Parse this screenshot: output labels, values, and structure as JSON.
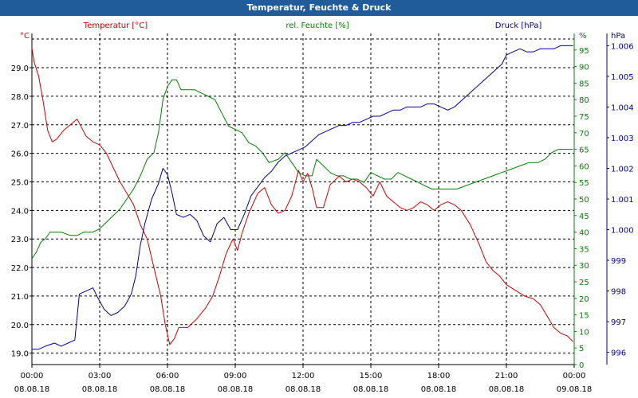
{
  "title": "Temperatur, Feuchte & Druck",
  "colors": {
    "temperature": "#cc0000",
    "humidity": "#008000",
    "pressure": "#000099",
    "title_bar": "#1f5c99",
    "grid": "#000000"
  },
  "chart_data": {
    "type": "line",
    "title": "Temperatur, Feuchte & Druck",
    "x_range": [
      0,
      24
    ],
    "x_ticks": [
      {
        "hours": 0,
        "time": "00:00",
        "date": "08.08.18"
      },
      {
        "hours": 3,
        "time": "03:00",
        "date": "08.08.18"
      },
      {
        "hours": 6,
        "time": "06:00",
        "date": "08.08.18"
      },
      {
        "hours": 9,
        "time": "09:00",
        "date": "08.08.18"
      },
      {
        "hours": 12,
        "time": "12:00",
        "date": "08.08.18"
      },
      {
        "hours": 15,
        "time": "15:00",
        "date": "08.08.18"
      },
      {
        "hours": 18,
        "time": "18:00",
        "date": "08.08.18"
      },
      {
        "hours": 21,
        "time": "21:00",
        "date": "08.08.18"
      },
      {
        "hours": 24,
        "time": "00:00",
        "date": "09.08.18"
      }
    ],
    "axes": {
      "temperature": {
        "label": "Temperatur [°C]",
        "unit": "°C",
        "range": [
          18.6,
          30.2
        ],
        "ticks": [
          "19.0",
          "20.0",
          "21.0",
          "22.0",
          "23.0",
          "24.0",
          "25.0",
          "26.0",
          "27.0",
          "28.0",
          "29.0"
        ]
      },
      "humidity": {
        "label": "rel. Feuchte [%]",
        "unit": "%",
        "range": [
          0,
          100
        ],
        "ticks": [
          "0",
          "5",
          "10",
          "15",
          "20",
          "25",
          "30",
          "35",
          "40",
          "45",
          "50",
          "55",
          "60",
          "65",
          "70",
          "75",
          "80",
          "85",
          "90",
          "95"
        ]
      },
      "pressure": {
        "label": "Druck [hPa]",
        "unit": "hPa",
        "range": [
          995.6,
          1006.4
        ],
        "ticks": [
          "996",
          "997",
          "998",
          "999",
          "1.000",
          "1.001",
          "1.002",
          "1.003",
          "1.004",
          "1.005",
          "1.006"
        ]
      }
    },
    "series": [
      {
        "name": "Temperatur",
        "axis": "temperature",
        "points": [
          [
            0,
            29.7
          ],
          [
            0.1,
            29.2
          ],
          [
            0.3,
            28.7
          ],
          [
            0.5,
            27.8
          ],
          [
            0.7,
            26.8
          ],
          [
            0.9,
            26.4
          ],
          [
            1.1,
            26.5
          ],
          [
            1.4,
            26.8
          ],
          [
            1.7,
            27.0
          ],
          [
            2.0,
            27.2
          ],
          [
            2.2,
            26.9
          ],
          [
            2.4,
            26.6
          ],
          [
            2.7,
            26.4
          ],
          [
            3.0,
            26.3
          ],
          [
            3.3,
            26.0
          ],
          [
            3.6,
            25.5
          ],
          [
            3.9,
            25.0
          ],
          [
            4.2,
            24.6
          ],
          [
            4.5,
            24.2
          ],
          [
            4.8,
            23.5
          ],
          [
            5.1,
            23.0
          ],
          [
            5.4,
            22.0
          ],
          [
            5.7,
            21.0
          ],
          [
            5.9,
            20.0
          ],
          [
            6.1,
            19.3
          ],
          [
            6.3,
            19.5
          ],
          [
            6.5,
            19.9
          ],
          [
            6.9,
            19.9
          ],
          [
            7.3,
            20.2
          ],
          [
            7.7,
            20.6
          ],
          [
            8.0,
            21.0
          ],
          [
            8.3,
            21.7
          ],
          [
            8.6,
            22.5
          ],
          [
            8.9,
            23.0
          ],
          [
            9.1,
            22.6
          ],
          [
            9.3,
            23.2
          ],
          [
            9.6,
            23.9
          ],
          [
            10.0,
            24.6
          ],
          [
            10.3,
            24.8
          ],
          [
            10.6,
            24.2
          ],
          [
            10.9,
            23.9
          ],
          [
            11.2,
            24.0
          ],
          [
            11.5,
            24.5
          ],
          [
            11.8,
            25.4
          ],
          [
            12.0,
            25.0
          ],
          [
            12.2,
            25.3
          ],
          [
            12.4,
            24.8
          ],
          [
            12.6,
            24.1
          ],
          [
            12.9,
            24.1
          ],
          [
            13.2,
            24.9
          ],
          [
            13.6,
            25.2
          ],
          [
            13.9,
            25.0
          ],
          [
            14.2,
            25.1
          ],
          [
            14.5,
            25.0
          ],
          [
            14.8,
            24.8
          ],
          [
            15.1,
            24.5
          ],
          [
            15.4,
            25.0
          ],
          [
            15.7,
            24.5
          ],
          [
            16.0,
            24.3
          ],
          [
            16.3,
            24.1
          ],
          [
            16.6,
            24.0
          ],
          [
            16.9,
            24.1
          ],
          [
            17.2,
            24.3
          ],
          [
            17.5,
            24.2
          ],
          [
            17.8,
            24.0
          ],
          [
            18.1,
            24.2
          ],
          [
            18.4,
            24.3
          ],
          [
            18.7,
            24.2
          ],
          [
            19.0,
            24.0
          ],
          [
            19.4,
            23.5
          ],
          [
            19.8,
            22.8
          ],
          [
            20.1,
            22.2
          ],
          [
            20.4,
            21.9
          ],
          [
            20.7,
            21.7
          ],
          [
            21.0,
            21.4
          ],
          [
            21.4,
            21.2
          ],
          [
            21.8,
            21.0
          ],
          [
            22.2,
            20.9
          ],
          [
            22.5,
            20.7
          ],
          [
            22.8,
            20.3
          ],
          [
            23.1,
            19.9
          ],
          [
            23.4,
            19.7
          ],
          [
            23.7,
            19.6
          ],
          [
            23.95,
            19.4
          ]
        ]
      },
      {
        "name": "rel. Feuchte",
        "axis": "humidity",
        "points": [
          [
            0,
            32
          ],
          [
            0.2,
            34
          ],
          [
            0.4,
            37
          ],
          [
            0.6,
            38
          ],
          [
            0.8,
            40
          ],
          [
            1.0,
            40
          ],
          [
            1.3,
            40
          ],
          [
            1.7,
            39
          ],
          [
            2.0,
            39
          ],
          [
            2.3,
            40
          ],
          [
            2.7,
            40
          ],
          [
            3.0,
            41
          ],
          [
            3.3,
            43
          ],
          [
            3.6,
            45
          ],
          [
            3.9,
            47
          ],
          [
            4.2,
            50
          ],
          [
            4.5,
            53
          ],
          [
            4.8,
            57
          ],
          [
            5.1,
            62
          ],
          [
            5.4,
            64
          ],
          [
            5.6,
            70
          ],
          [
            5.8,
            80
          ],
          [
            6.0,
            84
          ],
          [
            6.2,
            86
          ],
          [
            6.4,
            86
          ],
          [
            6.6,
            83
          ],
          [
            6.9,
            83
          ],
          [
            7.2,
            83
          ],
          [
            7.5,
            82
          ],
          [
            7.8,
            81
          ],
          [
            8.1,
            80
          ],
          [
            8.4,
            76
          ],
          [
            8.7,
            72
          ],
          [
            9.0,
            71
          ],
          [
            9.3,
            70
          ],
          [
            9.6,
            67
          ],
          [
            9.9,
            66
          ],
          [
            10.2,
            64
          ],
          [
            10.5,
            61
          ],
          [
            10.9,
            62
          ],
          [
            11.2,
            64
          ],
          [
            11.5,
            61
          ],
          [
            11.8,
            58
          ],
          [
            12.1,
            57
          ],
          [
            12.4,
            57
          ],
          [
            12.6,
            62
          ],
          [
            12.9,
            60
          ],
          [
            13.2,
            58
          ],
          [
            13.5,
            57
          ],
          [
            13.8,
            57
          ],
          [
            14.1,
            56
          ],
          [
            14.4,
            56
          ],
          [
            14.7,
            55
          ],
          [
            15.0,
            58
          ],
          [
            15.3,
            57
          ],
          [
            15.6,
            56
          ],
          [
            15.9,
            56
          ],
          [
            16.2,
            58
          ],
          [
            16.5,
            57
          ],
          [
            16.8,
            56
          ],
          [
            17.1,
            55
          ],
          [
            17.4,
            54
          ],
          [
            17.7,
            53
          ],
          [
            18.0,
            53
          ],
          [
            18.4,
            53
          ],
          [
            18.8,
            53
          ],
          [
            19.2,
            54
          ],
          [
            19.6,
            55
          ],
          [
            20.0,
            56
          ],
          [
            20.4,
            57
          ],
          [
            20.8,
            58
          ],
          [
            21.2,
            59
          ],
          [
            21.6,
            60
          ],
          [
            22.0,
            61
          ],
          [
            22.4,
            61
          ],
          [
            22.7,
            62
          ],
          [
            23.0,
            64
          ],
          [
            23.3,
            65
          ],
          [
            23.6,
            65
          ],
          [
            23.95,
            65
          ]
        ]
      },
      {
        "name": "Druck",
        "axis": "pressure",
        "points": [
          [
            0,
            996.1
          ],
          [
            0.3,
            996.1
          ],
          [
            0.6,
            996.2
          ],
          [
            1.0,
            996.3
          ],
          [
            1.3,
            996.2
          ],
          [
            1.6,
            996.3
          ],
          [
            1.9,
            996.4
          ],
          [
            2.1,
            997.9
          ],
          [
            2.4,
            998.0
          ],
          [
            2.7,
            998.1
          ],
          [
            2.9,
            997.8
          ],
          [
            3.2,
            997.4
          ],
          [
            3.5,
            997.2
          ],
          [
            3.8,
            997.3
          ],
          [
            4.1,
            997.5
          ],
          [
            4.4,
            997.9
          ],
          [
            4.6,
            998.5
          ],
          [
            4.8,
            999.5
          ],
          [
            5.0,
            1000.2
          ],
          [
            5.3,
            1001.0
          ],
          [
            5.6,
            1001.5
          ],
          [
            5.8,
            1002.0
          ],
          [
            6.0,
            1001.8
          ],
          [
            6.2,
            1001.2
          ],
          [
            6.4,
            1000.5
          ],
          [
            6.7,
            1000.4
          ],
          [
            7.0,
            1000.5
          ],
          [
            7.3,
            1000.3
          ],
          [
            7.6,
            999.8
          ],
          [
            7.9,
            999.6
          ],
          [
            8.2,
            1000.2
          ],
          [
            8.5,
            1000.4
          ],
          [
            8.8,
            1000.0
          ],
          [
            9.1,
            1000.0
          ],
          [
            9.4,
            1000.5
          ],
          [
            9.7,
            1001.1
          ],
          [
            10.0,
            1001.4
          ],
          [
            10.3,
            1001.7
          ],
          [
            10.6,
            1001.9
          ],
          [
            10.9,
            1002.2
          ],
          [
            11.2,
            1002.4
          ],
          [
            11.5,
            1002.5
          ],
          [
            11.8,
            1002.6
          ],
          [
            12.1,
            1002.7
          ],
          [
            12.4,
            1002.9
          ],
          [
            12.7,
            1003.1
          ],
          [
            13.0,
            1003.2
          ],
          [
            13.3,
            1003.3
          ],
          [
            13.6,
            1003.4
          ],
          [
            13.9,
            1003.4
          ],
          [
            14.2,
            1003.5
          ],
          [
            14.5,
            1003.5
          ],
          [
            14.8,
            1003.6
          ],
          [
            15.1,
            1003.7
          ],
          [
            15.4,
            1003.7
          ],
          [
            15.7,
            1003.8
          ],
          [
            16.0,
            1003.9
          ],
          [
            16.3,
            1003.9
          ],
          [
            16.6,
            1004.0
          ],
          [
            16.9,
            1004.0
          ],
          [
            17.2,
            1004.0
          ],
          [
            17.5,
            1004.1
          ],
          [
            17.8,
            1004.1
          ],
          [
            18.1,
            1004.0
          ],
          [
            18.4,
            1003.9
          ],
          [
            18.7,
            1004.0
          ],
          [
            19.0,
            1004.2
          ],
          [
            19.3,
            1004.4
          ],
          [
            19.6,
            1004.6
          ],
          [
            19.9,
            1004.8
          ],
          [
            20.2,
            1005.0
          ],
          [
            20.5,
            1005.2
          ],
          [
            20.8,
            1005.4
          ],
          [
            21.0,
            1005.7
          ],
          [
            21.3,
            1005.8
          ],
          [
            21.6,
            1005.9
          ],
          [
            21.9,
            1005.8
          ],
          [
            22.2,
            1005.8
          ],
          [
            22.5,
            1005.9
          ],
          [
            22.8,
            1005.9
          ],
          [
            23.1,
            1005.9
          ],
          [
            23.4,
            1006.0
          ],
          [
            23.7,
            1006.0
          ],
          [
            23.95,
            1006.0
          ]
        ]
      }
    ]
  }
}
